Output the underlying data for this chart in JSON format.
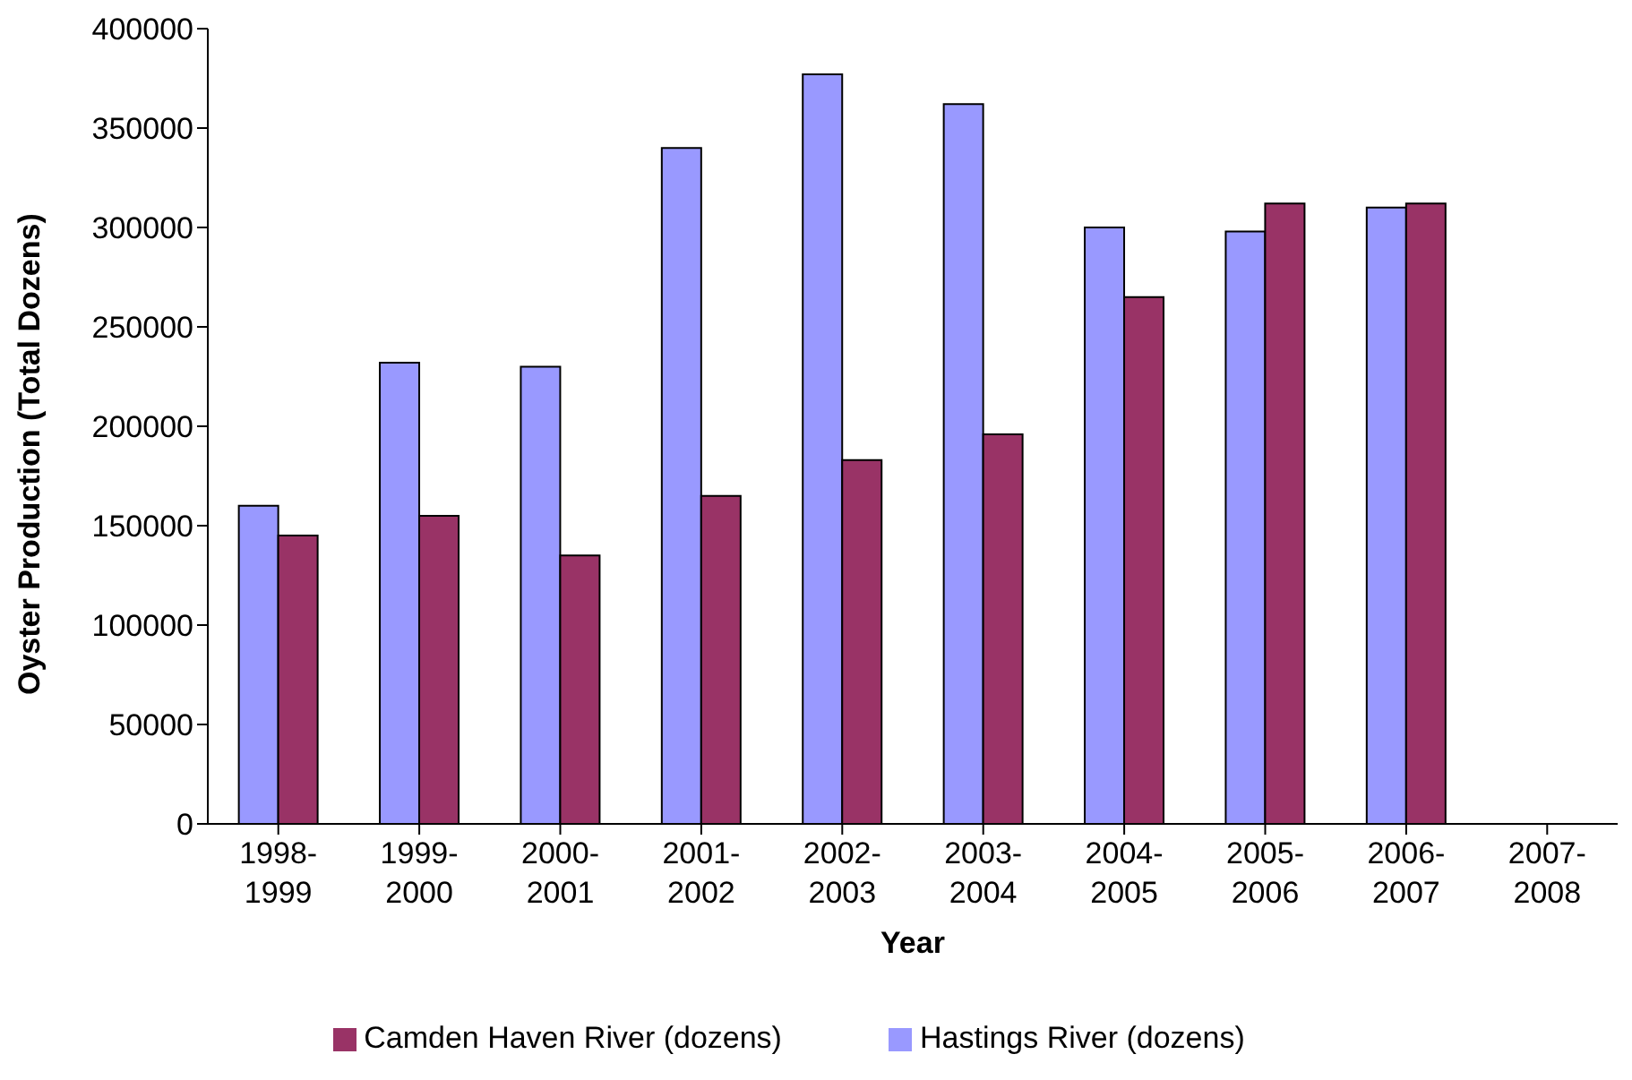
{
  "chart_data": {
    "type": "bar",
    "xlabel": "Year",
    "ylabel": "Oyster Production (Total Dozens)",
    "categories": [
      "1998-1999",
      "1999-2000",
      "2000-2001",
      "2001-2002",
      "2002-2003",
      "2003-2004",
      "2004-2005",
      "2005-2006",
      "2006-2007",
      "2007-2008"
    ],
    "series": [
      {
        "name": "Hastings River (dozens)",
        "color": "#9999ff",
        "values": [
          160000,
          232000,
          230000,
          340000,
          377000,
          362000,
          300000,
          298000,
          310000,
          null
        ]
      },
      {
        "name": "Camden Haven River (dozens)",
        "color": "#993366",
        "values": [
          145000,
          155000,
          135000,
          165000,
          183000,
          196000,
          265000,
          312000,
          312000,
          null
        ]
      }
    ],
    "ylim": [
      0,
      400000
    ],
    "yticks": [
      0,
      50000,
      100000,
      150000,
      200000,
      250000,
      300000,
      350000,
      400000
    ],
    "grid": false,
    "legend": "bottom"
  }
}
